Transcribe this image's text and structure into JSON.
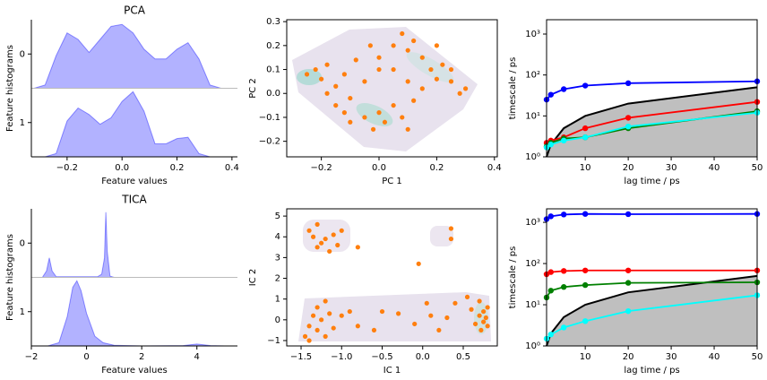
{
  "chart_data": [
    {
      "type": "ridge",
      "title": "PCA",
      "xlabel": "Feature values",
      "ylabel": "Feature histograms",
      "color": "#0000ff",
      "xlim": [
        -0.33,
        0.42
      ],
      "xticks": [
        {
          "value": -0.2,
          "label": "−0.2"
        },
        {
          "value": 0,
          "label": "0.0"
        },
        0.2,
        0.4
      ],
      "yticks": [
        0,
        1
      ],
      "series": [
        {
          "x": [
            -0.32,
            -0.28,
            -0.24,
            -0.2,
            -0.16,
            -0.12,
            -0.08,
            -0.04,
            0,
            0.04,
            0.08,
            0.12,
            0.16,
            0.2,
            0.24,
            0.28,
            0.32,
            0.36
          ],
          "values": [
            0,
            0.05,
            0.5,
            0.85,
            0.75,
            0.55,
            0.75,
            0.95,
            0.98,
            0.85,
            0.6,
            0.45,
            0.45,
            0.6,
            0.7,
            0.45,
            0.05,
            0
          ]
        },
        {
          "x": [
            -0.32,
            -0.28,
            -0.24,
            -0.2,
            -0.16,
            -0.12,
            -0.08,
            -0.04,
            0,
            0.04,
            0.08,
            0.12,
            0.16,
            0.2,
            0.24,
            0.28,
            0.32,
            0.36
          ],
          "values": [
            0,
            0,
            0.05,
            0.55,
            0.75,
            0.65,
            0.5,
            0.6,
            0.85,
            1.0,
            0.7,
            0.2,
            0.2,
            0.28,
            0.3,
            0.05,
            0,
            0
          ]
        }
      ]
    },
    {
      "type": "scatter",
      "xlabel": "PC 1",
      "ylabel": "PC 2",
      "color": "#ff7f0e",
      "xlim": [
        -0.32,
        0.41
      ],
      "ylim": [
        -0.265,
        0.308
      ],
      "xticks": [
        {
          "value": -0.2,
          "label": "−0.2"
        },
        {
          "value": 0,
          "label": "0.0"
        },
        0.2,
        0.4
      ],
      "yticks": [
        {
          "value": -0.2,
          "label": "−0.2"
        },
        {
          "value": -0.1,
          "label": "−0.1"
        },
        {
          "value": 0,
          "label": "0.0"
        },
        0.1,
        0.2,
        0.3
      ],
      "x": [
        -0.25,
        -0.22,
        -0.2,
        -0.18,
        -0.15,
        -0.12,
        -0.1,
        -0.08,
        -0.12,
        -0.1,
        -0.05,
        -0.02,
        0,
        0.02,
        0.05,
        0.08,
        0.1,
        0.12,
        0.15,
        -0.05,
        0,
        0.05,
        0.08,
        0.1,
        0.12,
        0.15,
        0.18,
        0.2,
        0.22,
        0.25,
        0.28,
        0.3,
        0.2,
        -0.03,
        0,
        -0.15,
        0.05,
        0.25,
        -0.18,
        0.1
      ],
      "values": [
        0.08,
        0.1,
        0.06,
        0.12,
        0.03,
        0.08,
        -0.02,
        0.14,
        -0.08,
        -0.12,
        -0.1,
        -0.15,
        -0.08,
        -0.12,
        -0.05,
        -0.1,
        -0.15,
        -0.03,
        0.02,
        0.05,
        0.1,
        0.2,
        0.25,
        0.18,
        0.22,
        0.15,
        0.1,
        0.06,
        0.12,
        0.05,
        0,
        0.02,
        0.2,
        0.2,
        0.15,
        -0.05,
        0.1,
        0.1,
        0,
        0.05
      ]
    },
    {
      "type": "line",
      "xlabel": "lag time / ps",
      "ylabel": "timescale / ps",
      "log_y": true,
      "xlim": [
        1,
        50
      ],
      "ylim": [
        1,
        2240
      ],
      "xticks": [
        10,
        20,
        30,
        40,
        50
      ],
      "yticks": [
        {
          "value": 1,
          "label": "10⁰"
        },
        {
          "value": 10,
          "label": "10¹"
        },
        {
          "value": 100,
          "label": "10²"
        },
        {
          "value": 1000,
          "label": "10³"
        }
      ],
      "x": [
        1,
        2,
        5,
        10,
        20,
        50
      ],
      "cutoff": {
        "color": "#000000",
        "fill": "#bfbfbf",
        "values": [
          1,
          2,
          5,
          10,
          20,
          50
        ]
      },
      "series": [
        {
          "color": "#0000ff",
          "values": [
            25,
            33,
            45,
            55,
            63,
            70
          ]
        },
        {
          "color": "#ff0000",
          "values": [
            2.2,
            2.5,
            3,
            5,
            9,
            22
          ]
        },
        {
          "color": "#008000",
          "values": [
            1.8,
            2.2,
            2.8,
            3,
            5,
            13
          ]
        },
        {
          "color": "#00ffff",
          "values": [
            1.7,
            2,
            2.5,
            3,
            5.5,
            12
          ]
        }
      ]
    },
    {
      "type": "ridge",
      "title": "TICA",
      "xlabel": "Feature values",
      "ylabel": "Feature histograms",
      "color": "#0000ff",
      "xlim": [
        -2,
        5.47
      ],
      "xticks": [
        {
          "value": -2,
          "label": "−2"
        },
        0,
        2,
        4
      ],
      "yticks": [
        0,
        1
      ],
      "series": [
        {
          "x": [
            -1.6,
            -1.45,
            -1.35,
            -1.25,
            -1.1,
            0.4,
            0.55,
            0.65,
            0.7,
            0.75,
            0.85,
            1.0
          ],
          "values": [
            0,
            0.1,
            0.3,
            0.1,
            0.01,
            0.01,
            0.05,
            0.3,
            1.0,
            0.4,
            0.02,
            0
          ]
        },
        {
          "x": [
            -1.4,
            -1.0,
            -0.7,
            -0.5,
            -0.35,
            -0.2,
            0,
            0.3,
            0.6,
            1.0,
            2.0,
            3.5,
            4.0,
            4.5,
            5.0
          ],
          "values": [
            0,
            0.05,
            0.45,
            0.9,
            1.0,
            0.85,
            0.5,
            0.15,
            0.05,
            0.01,
            0,
            0.005,
            0.03,
            0.005,
            0
          ]
        }
      ]
    },
    {
      "type": "scatter",
      "xlabel": "IC 1",
      "ylabel": "IC 2",
      "color": "#ff7f0e",
      "xlim": [
        -1.677,
        0.92
      ],
      "ylim": [
        -1.26,
        5.35
      ],
      "xticks": [
        {
          "value": -1.5,
          "label": "−1.5"
        },
        {
          "value": -1,
          "label": "−1.0"
        },
        {
          "value": -0.5,
          "label": "−0.5"
        },
        {
          "value": 0,
          "label": "0.0"
        },
        0.5
      ],
      "yticks": [
        {
          "value": -1,
          "label": "−1"
        },
        0,
        1,
        2,
        3,
        4,
        5
      ],
      "x": [
        -1.4,
        -1.3,
        -1.35,
        -1.25,
        -1.2,
        -1.1,
        -1.05,
        -1.15,
        -1.0,
        -0.8,
        -1.3,
        0.35,
        0.35,
        -0.05,
        -1.45,
        -1.4,
        -1.4,
        -1.35,
        -1.3,
        -1.3,
        -1.25,
        -1.2,
        -1.2,
        -1.15,
        -1.1,
        -1.0,
        -0.9,
        -0.8,
        -0.6,
        -0.5,
        -0.3,
        -0.1,
        0.05,
        0.1,
        0.2,
        0.3,
        0.4,
        0.55,
        0.6,
        0.65,
        0.7,
        0.7,
        0.72,
        0.75,
        0.75,
        0.78,
        0.8,
        0.8
      ],
      "values": [
        4.3,
        4.6,
        4.0,
        3.7,
        3.9,
        4.1,
        3.6,
        3.3,
        4.3,
        3.5,
        3.5,
        4.4,
        3.9,
        2.7,
        -0.8,
        -1.0,
        -0.3,
        0.2,
        -0.5,
        0.6,
        0,
        -0.8,
        0.9,
        0.3,
        -0.4,
        0.2,
        0.4,
        -0.3,
        -0.5,
        0.4,
        0.3,
        -0.2,
        0.8,
        0.2,
        -0.5,
        0.1,
        0.8,
        1.1,
        0.5,
        -0.2,
        0.9,
        0.2,
        -0.5,
        0.4,
        -0.1,
        0.1,
        -0.3,
        0.6
      ]
    },
    {
      "type": "line",
      "xlabel": "lag time / ps",
      "ylabel": "timescale / ps",
      "log_y": true,
      "xlim": [
        1,
        50
      ],
      "ylim": [
        1,
        2130
      ],
      "xticks": [
        10,
        20,
        30,
        40,
        50
      ],
      "yticks": [
        {
          "value": 1,
          "label": "10⁰"
        },
        {
          "value": 10,
          "label": "10¹"
        },
        {
          "value": 100,
          "label": "10²"
        },
        {
          "value": 1000,
          "label": "10³"
        }
      ],
      "x": [
        1,
        2,
        5,
        10,
        20,
        50
      ],
      "cutoff": {
        "color": "#000000",
        "fill": "#bfbfbf",
        "values": [
          1,
          2,
          5,
          10,
          20,
          50
        ]
      },
      "series": [
        {
          "color": "#0000ff",
          "values": [
            1200,
            1400,
            1550,
            1600,
            1580,
            1600
          ]
        },
        {
          "color": "#ff0000",
          "values": [
            55,
            62,
            66,
            68,
            68,
            68
          ]
        },
        {
          "color": "#008000",
          "values": [
            15,
            22,
            27,
            30,
            34,
            35
          ]
        },
        {
          "color": "#00ffff",
          "values": [
            1.5,
            1.9,
            2.8,
            4,
            7,
            17
          ]
        }
      ]
    }
  ]
}
